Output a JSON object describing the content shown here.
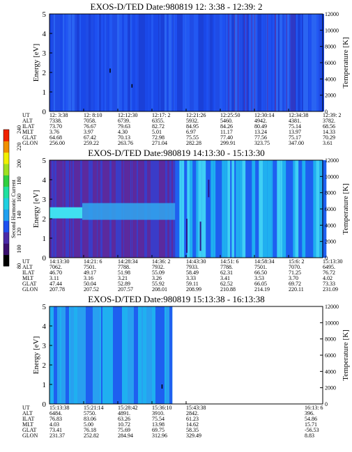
{
  "colors": {
    "plot_background": "#1e50f0",
    "purple_band": "#5b2a9e",
    "cyan_band": "#1fb0f0",
    "light_cyan": "#3fd0f5",
    "frame": "#000000"
  },
  "colorbar": {
    "label": "Second Harmonic Current",
    "ticks": [
      "80",
      "100",
      "120",
      "140",
      "160",
      "180",
      "200",
      "220",
      "240"
    ],
    "colors": [
      "#000000",
      "#3a0f6e",
      "#4a2aa8",
      "#1e50f0",
      "#1fa0f0",
      "#20d0e0",
      "#20e0a0",
      "#30d040",
      "#a0e020",
      "#f0f000",
      "#f09000",
      "#f02000"
    ]
  },
  "chart_data": [
    {
      "type": "heatmap",
      "title": "EXOS-D/TED   Date:980819  12: 3:38 - 12:39: 2",
      "ylabel": "Energy [eV]",
      "y2label": "Temperature [K]",
      "ylim": [
        0,
        5
      ],
      "y2lim": [
        0,
        12000
      ],
      "yticks": [
        "0",
        "1",
        "2",
        "3",
        "4",
        "5"
      ],
      "y2ticks": [
        "0",
        "2000",
        "4000",
        "6000",
        "8000",
        "10000",
        "12000"
      ],
      "row_labels": [
        "UT",
        "ALT",
        "ILAT",
        "MLT",
        "GLAT",
        "GLON"
      ],
      "columns": [
        [
          "12: 3:38",
          "7338.",
          "73.70",
          "3.76",
          "64.68",
          "256.00"
        ],
        [
          "12: 8:10",
          "7058.",
          "76.67",
          "3.97",
          "67.42",
          "259.22"
        ],
        [
          "12:12:30",
          "6739.",
          "79.63",
          "4.30",
          "70.13",
          "263.76"
        ],
        [
          "12:17: 2",
          "6355.",
          "82.72",
          "5.01",
          "72.98",
          "271.04"
        ],
        [
          "12:21:26",
          "5932.",
          "84.95",
          "6.97",
          "75.55",
          "282.28"
        ],
        [
          "12:25:50",
          "5460.",
          "84.26",
          "11.17",
          "77.40",
          "299.91"
        ],
        [
          "12:30:14",
          "4942.",
          "80.49",
          "13.24",
          "77.56",
          "323.75"
        ],
        [
          "12:34:38",
          "4381.",
          "75.14",
          "13.97",
          "75.17",
          "347.00"
        ],
        [
          "12:39: 2",
          "3782.",
          "68.56",
          "14.33",
          "70.29",
          "3.61"
        ]
      ]
    },
    {
      "type": "heatmap",
      "title": "EXOS-D/TED   Date:980819  14:13:30 - 15:13:30",
      "ylabel": "Energy [eV]",
      "y2label": "Temperature [K]",
      "ylim": [
        0,
        5
      ],
      "y2lim": [
        0,
        12000
      ],
      "yticks": [
        "0",
        "1",
        "2",
        "3",
        "4",
        "5"
      ],
      "y2ticks": [
        "0",
        "2000",
        "4000",
        "6000",
        "8000",
        "10000",
        "12000"
      ],
      "row_labels": [
        "UT",
        "ALT",
        "ILAT",
        "MLT",
        "GLAT",
        "GLON"
      ],
      "columns": [
        [
          "14:13:30",
          "7062.",
          "46.70",
          "3.11",
          "47.44",
          "207.78"
        ],
        [
          "14:21: 6",
          "7501.",
          "49.17",
          "3.16",
          "50.04",
          "207.52"
        ],
        [
          "14:28:34",
          "7788.",
          "51.98",
          "3.21",
          "52.89",
          "207.57"
        ],
        [
          "14:36: 2",
          "7932.",
          "55.09",
          "3.26",
          "55.92",
          "208.01"
        ],
        [
          "14:43:30",
          "7933.",
          "58.49",
          "3.33",
          "59.11",
          "208.99"
        ],
        [
          "14:51: 6",
          "7788.",
          "62.31",
          "3.41",
          "62.52",
          "210.88"
        ],
        [
          "14:58:34",
          "7501.",
          "66.50",
          "3.53",
          "66.05",
          "214.19"
        ],
        [
          "15:6: 2",
          "7070.",
          "71.25",
          "3.70",
          "69.72",
          "220.11"
        ],
        [
          "15:13:30",
          "6495.",
          "76.72",
          "4.02",
          "73.33",
          "231.09"
        ]
      ]
    },
    {
      "type": "heatmap",
      "title": "EXOS-D/TED   Date:980819  15:13:38 - 16:13:38",
      "ylabel": "Energy [eV]",
      "y2label": "Temperature [K]",
      "ylim": [
        0,
        5
      ],
      "y2lim": [
        0,
        12000
      ],
      "yticks": [
        "0",
        "1",
        "2",
        "3",
        "4",
        "5"
      ],
      "y2ticks": [
        "0",
        "2000",
        "4000",
        "6000",
        "8000",
        "10000",
        "12000"
      ],
      "row_labels": [
        "UT",
        "ALT",
        "ILAT",
        "MLT",
        "GLAT",
        "GLON"
      ],
      "columns": [
        [
          "15:13:38",
          "6484.",
          "76.83",
          "4.03",
          "73.41",
          "231.37"
        ],
        [
          "15:21:14",
          "5750.",
          "83.06",
          "5.00",
          "76.18",
          "252.82"
        ],
        [
          "15:28:42",
          "4891.",
          "63.26",
          "10.72",
          "75.69",
          "284.94"
        ],
        [
          "15:36:10",
          "3910.",
          "75.54",
          "13.98",
          "69.75",
          "312.96"
        ],
        [
          "15:43:38",
          "2842.",
          "61.23",
          "14.62",
          "58.35",
          "329.49"
        ]
      ],
      "last_column": [
        "16:13: 6",
        "396.",
        "54.86",
        "15.71",
        "-56.53",
        "8.83"
      ],
      "data_end_fraction": 0.45
    }
  ]
}
